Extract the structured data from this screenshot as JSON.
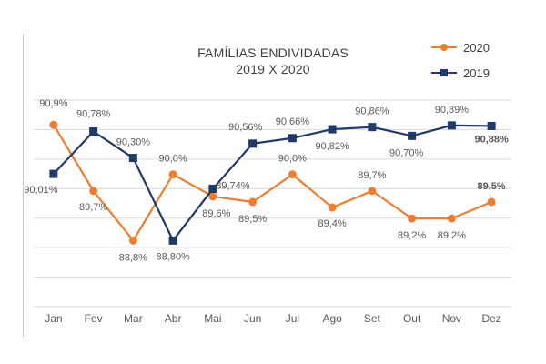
{
  "chart_data": {
    "type": "line",
    "title_line1": "FAMÍLIAS ENDIVIDADAS",
    "title_line2": "2019 X 2020",
    "categories": [
      "Jan",
      "Fev",
      "Mar",
      "Abr",
      "Mai",
      "Jun",
      "Jul",
      "Ago",
      "Set",
      "Out",
      "Nov",
      "Dez"
    ],
    "ylim": [
      87.6,
      91.35
    ],
    "grid": true,
    "legend_position": "top-right",
    "series": [
      {
        "name": "2020",
        "color": "#ed7d31",
        "marker": "circle",
        "values": [
          90.9,
          89.7,
          88.8,
          90.0,
          89.6,
          89.5,
          90.0,
          89.4,
          89.7,
          89.2,
          89.2,
          89.5
        ],
        "labels": [
          "90,9%",
          "89,7%",
          "88,8%",
          "90,0%",
          "89,6%",
          "89,5%",
          "90,0%",
          "89,4%",
          "89,7%",
          "89,2%",
          "89,2%",
          "89,5%"
        ]
      },
      {
        "name": "2019",
        "color": "#1f3a68",
        "marker": "square",
        "values": [
          90.01,
          90.78,
          90.3,
          88.8,
          89.74,
          90.56,
          90.66,
          90.82,
          90.86,
          90.7,
          90.89,
          90.88
        ],
        "labels": [
          "90,01%",
          "90,78%",
          "90,30%",
          "88,80%",
          "89,74%",
          "90,56%",
          "90,66%",
          "90,82%",
          "90,86%",
          "90,70%",
          "90,89%",
          "90,88%"
        ]
      }
    ]
  }
}
